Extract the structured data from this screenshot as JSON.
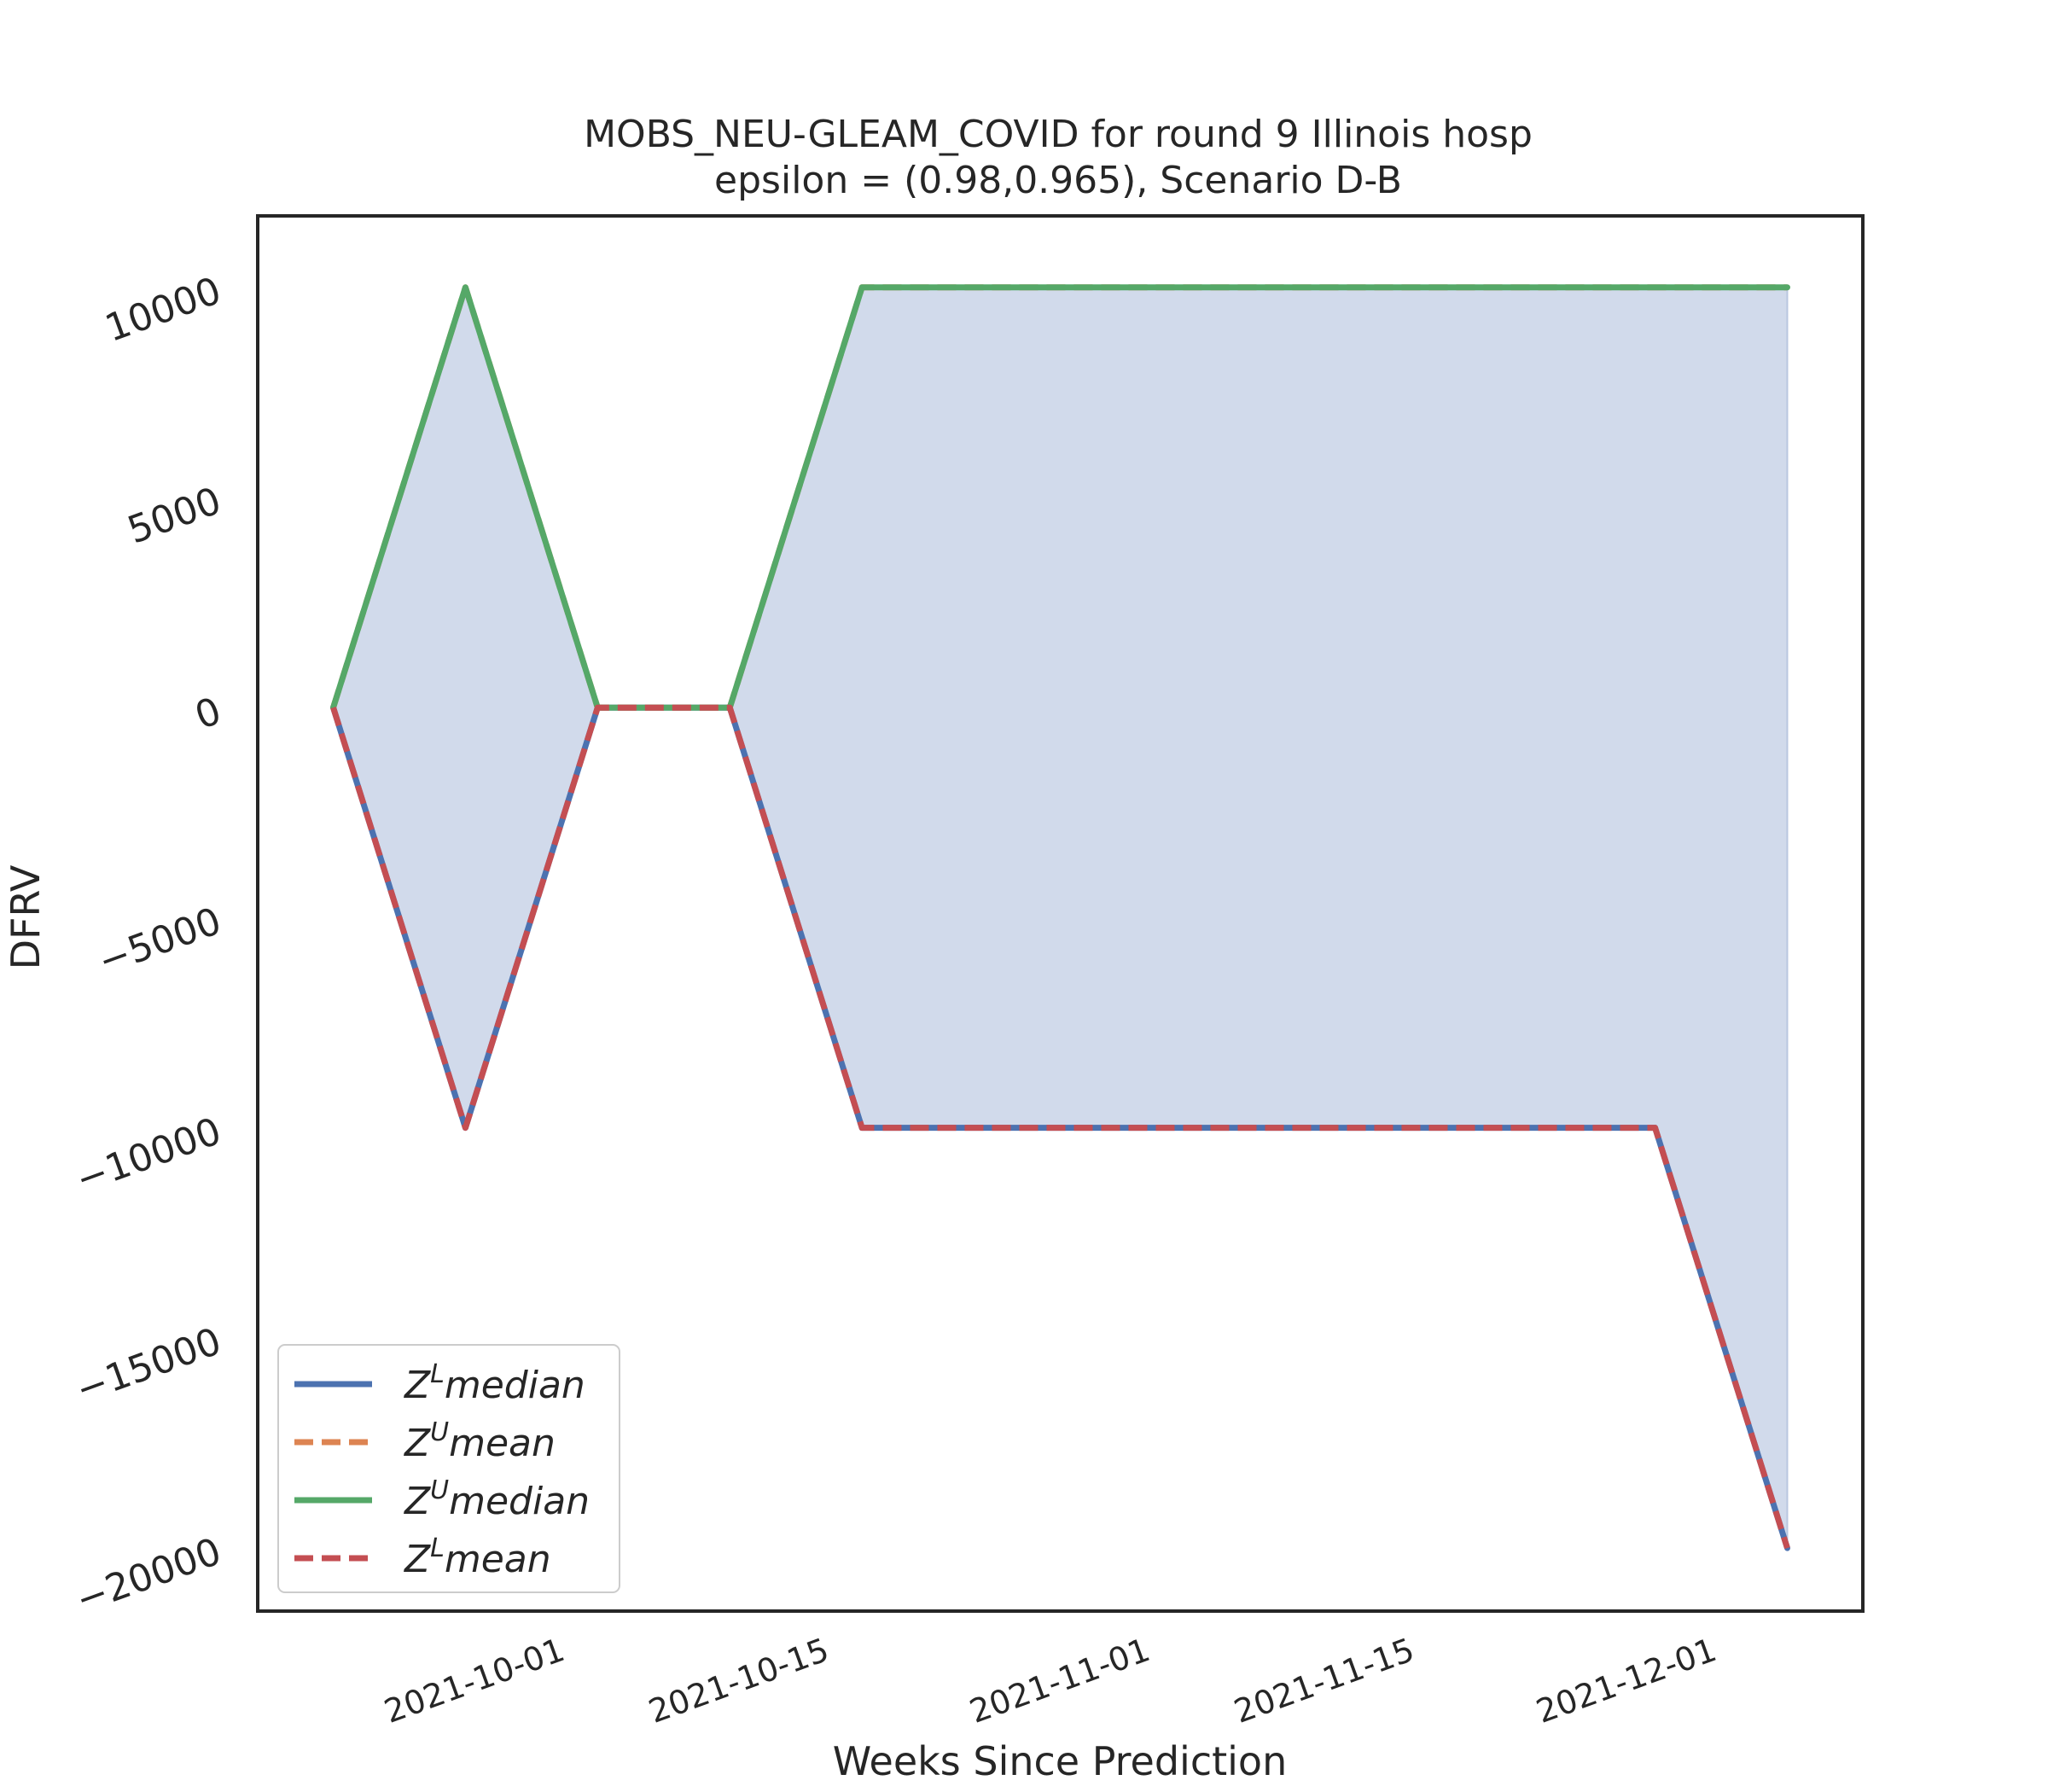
{
  "chart_data": {
    "type": "line",
    "title": "MOBS_NEU-GLEAM_COVID for round 9 Illinois  hosp",
    "subtitle": "epsilon = (0.98,0.965), Scenario D-B",
    "xlabel": "Weeks Since Prediction",
    "ylabel": "DFRV",
    "x": [
      "2021-09-19",
      "2021-09-26",
      "2021-10-03",
      "2021-10-10",
      "2021-10-17",
      "2021-10-24",
      "2021-10-31",
      "2021-11-07",
      "2021-11-14",
      "2021-11-21",
      "2021-11-28",
      "2021-12-05"
    ],
    "x_range": [
      "2021-09-15",
      "2021-12-09"
    ],
    "ylim": [
      -21500,
      11700
    ],
    "x_ticks": [
      {
        "date": "2021-10-01",
        "label": "2021-10-01"
      },
      {
        "date": "2021-10-15",
        "label": "2021-10-15"
      },
      {
        "date": "2021-11-01",
        "label": "2021-11-01"
      },
      {
        "date": "2021-11-15",
        "label": "2021-11-15"
      },
      {
        "date": "2021-12-01",
        "label": "2021-12-01"
      }
    ],
    "y_ticks": [
      {
        "value": 10000,
        "label": "10000"
      },
      {
        "value": 5000,
        "label": "5000"
      },
      {
        "value": 0,
        "label": "0"
      },
      {
        "value": -5000,
        "label": "−5000"
      },
      {
        "value": -10000,
        "label": "−10000"
      },
      {
        "value": -15000,
        "label": "−15000"
      },
      {
        "value": -20000,
        "label": "−20000"
      }
    ],
    "fill_between": {
      "lower": "Z^L median",
      "upper": "Z^U median",
      "color": "#d1daeb"
    },
    "series": [
      {
        "name": "Z^L median",
        "sup": "L",
        "word": "median",
        "color": "#4c72b0",
        "dashed": false,
        "values": [
          0,
          -10000,
          0,
          0,
          -10000,
          -10000,
          -10000,
          -10000,
          -10000,
          -10000,
          -10000,
          -20000
        ]
      },
      {
        "name": "Z^U mean",
        "sup": "U",
        "word": "mean",
        "color": "#dd8452",
        "dashed": true,
        "values": [
          0,
          10000,
          0,
          0,
          10000,
          10000,
          10000,
          10000,
          10000,
          10000,
          10000,
          10000
        ]
      },
      {
        "name": "Z^U median",
        "sup": "U",
        "word": "median",
        "color": "#55a868",
        "dashed": false,
        "values": [
          0,
          10000,
          0,
          0,
          10000,
          10000,
          10000,
          10000,
          10000,
          10000,
          10000,
          10000
        ]
      },
      {
        "name": "Z^L mean",
        "sup": "L",
        "word": "mean",
        "color": "#c44e52",
        "dashed": true,
        "values": [
          0,
          -10000,
          0,
          0,
          -10000,
          -10000,
          -10000,
          -10000,
          -10000,
          -10000,
          -10000,
          -20000
        ]
      }
    ],
    "grid": false,
    "legend_position": "lower-left"
  }
}
